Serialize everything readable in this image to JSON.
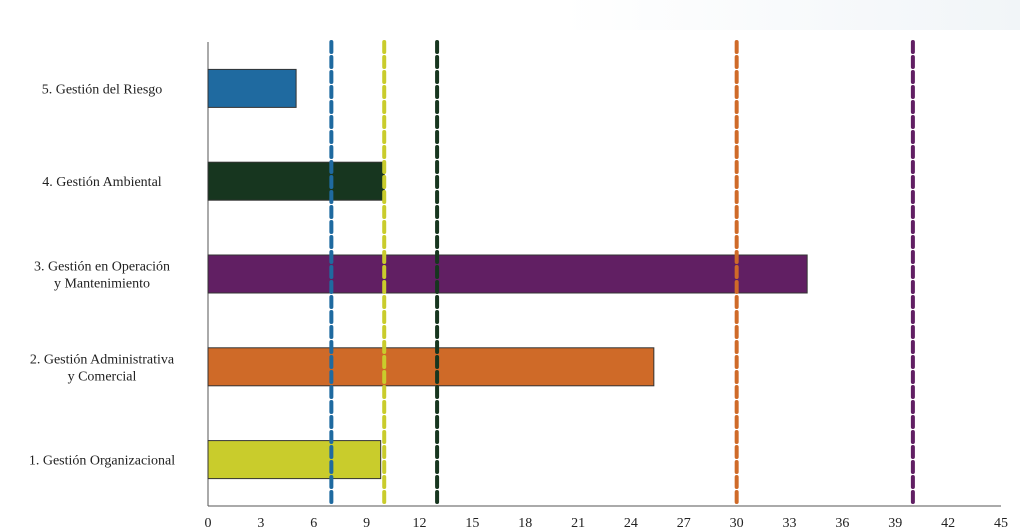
{
  "chart_data": {
    "type": "bar",
    "orientation": "horizontal",
    "categories": [
      [
        "5. Gestión del Riesgo"
      ],
      [
        "4. Gestión Ambiental"
      ],
      [
        "3. Gestión en Operación",
        "y Mantenimiento"
      ],
      [
        "2. Gestión Administrativa",
        "y Comercial"
      ],
      [
        "1. Gestión Organizacional"
      ]
    ],
    "values": [
      5,
      10,
      34,
      25.3,
      9.8
    ],
    "bar_colors": [
      "#1f6aa0",
      "#17361f",
      "#611f63",
      "#cf6a28",
      "#c9cc2c"
    ],
    "reference_lines": [
      {
        "x": 7,
        "color": "#1f6aa0"
      },
      {
        "x": 10,
        "color": "#c9cc2c"
      },
      {
        "x": 13,
        "color": "#17361f"
      },
      {
        "x": 30,
        "color": "#cf6a28"
      },
      {
        "x": 40,
        "color": "#611f63"
      }
    ],
    "xlim": [
      0,
      45
    ],
    "xticks": [
      "0",
      "3",
      "6",
      "9",
      "12",
      "15",
      "18",
      "21",
      "24",
      "27",
      "30",
      "33",
      "36",
      "39",
      "42",
      "45"
    ],
    "title": "",
    "xlabel": "",
    "ylabel": "",
    "grid": false,
    "legend": "none"
  }
}
